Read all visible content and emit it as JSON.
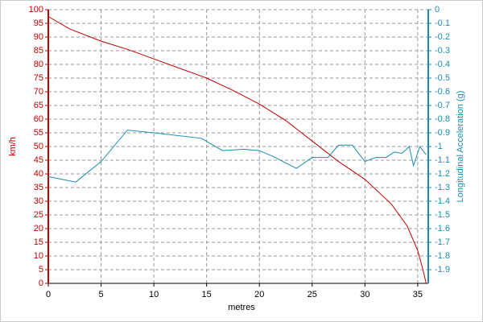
{
  "chart_data": {
    "type": "line",
    "xlabel": "metres",
    "ylabel": "km/h",
    "y2label": "Longitudinal Acceleration (g)",
    "xlim": [
      0,
      36
    ],
    "xticks": [
      0,
      5,
      10,
      15,
      20,
      25,
      30,
      35
    ],
    "ylim": [
      0,
      100
    ],
    "yticks": [
      0,
      5,
      10,
      15,
      20,
      25,
      30,
      35,
      40,
      45,
      50,
      55,
      60,
      65,
      70,
      75,
      80,
      85,
      90,
      95,
      100
    ],
    "y2lim": [
      -2,
      0
    ],
    "y2ticks": [
      0,
      -0.1,
      -0.2,
      -0.3,
      -0.4,
      -0.5,
      -0.6,
      -0.7,
      -0.8,
      -0.9,
      -1,
      -1.1,
      -1.2,
      -1.3,
      -1.4,
      -1.5,
      -1.6,
      -1.7,
      -1.8,
      -1.9
    ],
    "grid": true,
    "series": [
      {
        "color": "#c00000",
        "axis": "y",
        "x": [
          0,
          2,
          5,
          7.5,
          10,
          12.5,
          15,
          17.5,
          20,
          22.5,
          25,
          27.5,
          30,
          32.5,
          34,
          35,
          35.5,
          35.8
        ],
        "values": [
          97.5,
          93,
          88.5,
          85.5,
          82,
          78.5,
          75,
          70.5,
          65.5,
          59.5,
          52,
          44.5,
          38,
          29,
          21,
          12,
          5,
          0
        ]
      },
      {
        "color": "#1a8cb4",
        "axis": "y2",
        "x": [
          0,
          2.6,
          5,
          7.5,
          10,
          14.5,
          16.5,
          18.5,
          20,
          21.5,
          23.5,
          25,
          26.5,
          27.5,
          28.8,
          30,
          31,
          32,
          32.8,
          33.5,
          34.2,
          34.6,
          35.2,
          35.8
        ],
        "values": [
          -1.22,
          -1.26,
          -1.11,
          -0.88,
          -0.9,
          -0.94,
          -1.03,
          -1.02,
          -1.03,
          -1.08,
          -1.16,
          -1.08,
          -1.08,
          -0.99,
          -0.99,
          -1.11,
          -1.08,
          -1.08,
          -1.04,
          -1.05,
          -1,
          -1.14,
          -1,
          -1.06
        ]
      }
    ]
  }
}
